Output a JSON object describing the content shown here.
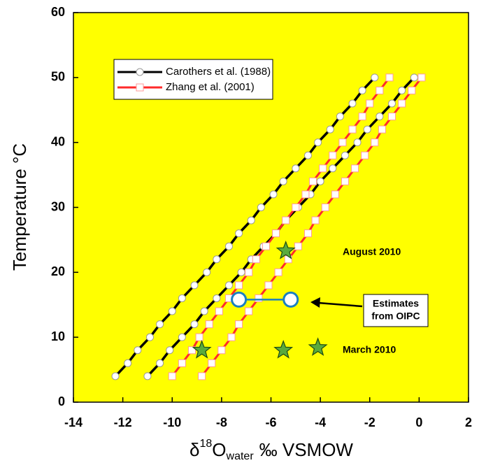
{
  "chart_data": {
    "type": "line",
    "ylabel": "Temperature °C",
    "xlabel_parts": [
      "δ",
      "18",
      "O",
      "water",
      "‰ VSMOW"
    ],
    "xlim": [
      -14,
      2
    ],
    "ylim": [
      0,
      60
    ],
    "xticks": [
      -14,
      -12,
      -10,
      -8,
      -6,
      -4,
      -2,
      0,
      2
    ],
    "yticks": [
      0,
      10,
      20,
      30,
      40,
      50,
      60
    ],
    "background": "#ffff00",
    "y": [
      4,
      6,
      8,
      10,
      12,
      14,
      16,
      18,
      20,
      22,
      24,
      26,
      28,
      30,
      32,
      34,
      36,
      38,
      40,
      42,
      44,
      46,
      48,
      50
    ],
    "series": [
      {
        "name": "Carothers et al. (1988)",
        "color": "#000000",
        "marker": "circle",
        "lines": [
          {
            "x": [
              -12.3,
              -11.8,
              -11.4,
              -10.9,
              -10.5,
              -10.0,
              -9.6,
              -9.1,
              -8.6,
              -8.2,
              -7.7,
              -7.3,
              -6.8,
              -6.4,
              -5.9,
              -5.5,
              -5.0,
              -4.5,
              -4.1,
              -3.6,
              -3.2,
              -2.7,
              -2.3,
              -1.8
            ]
          },
          {
            "x": [
              -11.0,
              -10.5,
              -10.1,
              -9.6,
              -9.1,
              -8.7,
              -8.2,
              -7.7,
              -7.2,
              -6.8,
              -6.3,
              -5.8,
              -5.4,
              -4.9,
              -4.4,
              -4.0,
              -3.5,
              -3.0,
              -2.5,
              -2.1,
              -1.6,
              -1.1,
              -0.7,
              -0.2
            ]
          }
        ]
      },
      {
        "name": "Zhang et al. (2001)",
        "color": "#ff2a2a",
        "marker": "square",
        "lines": [
          {
            "x": [
              -10.0,
              -9.6,
              -9.2,
              -8.9,
              -8.5,
              -8.1,
              -7.7,
              -7.3,
              -6.9,
              -6.6,
              -6.2,
              -5.8,
              -5.4,
              -5.0,
              -4.6,
              -4.3,
              -3.9,
              -3.5,
              -3.1,
              -2.7,
              -2.3,
              -2.0,
              -1.6,
              -1.2
            ]
          },
          {
            "x": [
              -8.8,
              -8.4,
              -8.0,
              -7.6,
              -7.3,
              -6.9,
              -6.5,
              -6.1,
              -5.7,
              -5.3,
              -4.9,
              -4.5,
              -4.2,
              -3.8,
              -3.4,
              -3.0,
              -2.6,
              -2.2,
              -1.8,
              -1.5,
              -1.1,
              -0.7,
              -0.3,
              0.1
            ]
          }
        ]
      }
    ],
    "stars": {
      "color": "#5aaa3c",
      "x": [
        -8.8,
        -5.5,
        -4.1,
        -5.4
      ],
      "y": [
        8,
        8,
        8.4,
        23.3
      ]
    },
    "oipc": {
      "color": "#1a7fc0",
      "x": [
        -7.3,
        -5.2
      ],
      "y": [
        15.8,
        15.8
      ]
    },
    "annotations": {
      "august": "August 2010",
      "march": "March 2010",
      "estimates": [
        "Estimates",
        "from OIPC"
      ]
    }
  }
}
